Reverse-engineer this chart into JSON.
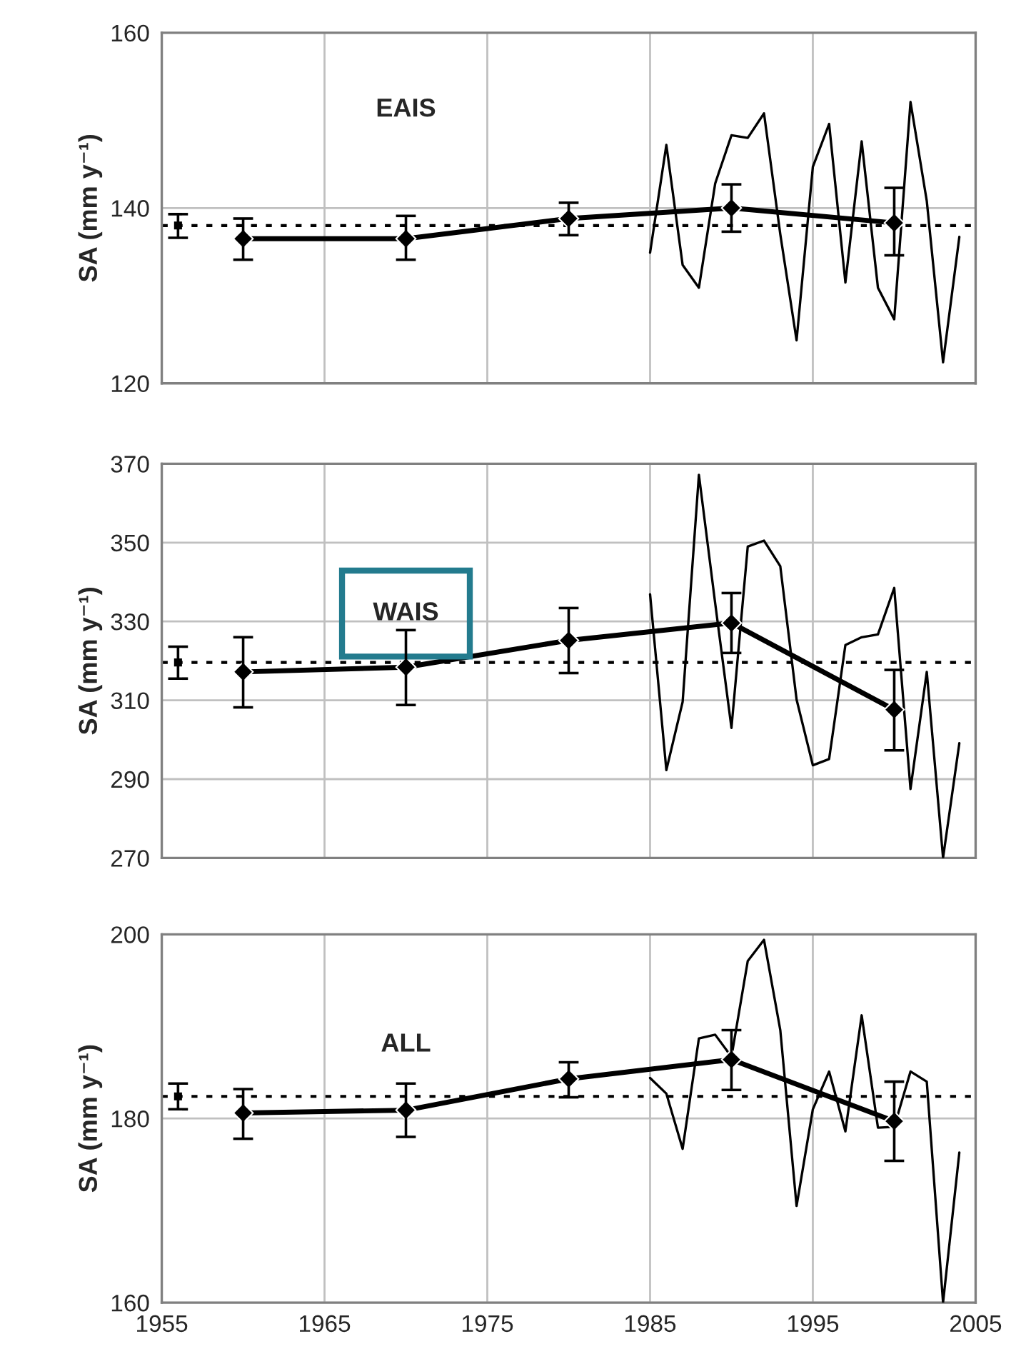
{
  "chart_data": [
    {
      "type": "line",
      "annotations": [
        "EAIS"
      ],
      "ylabel": "SA (mm y⁻¹)",
      "xlim": [
        1955,
        2005
      ],
      "xticks": [
        1955,
        1965,
        1975,
        1985,
        1995,
        2005
      ],
      "ylim": [
        120,
        160
      ],
      "yticks": [
        120,
        140,
        160
      ],
      "grid": true,
      "tick_labels": "y",
      "ref_lines": [
        {
          "axis": "y",
          "value": 138.0,
          "color": "#000000",
          "line_style": "dotted"
        }
      ],
      "series": [
        {
          "color": "#000000",
          "x": [
            1985,
            1986,
            1987,
            1988,
            1989,
            1990,
            1991,
            1992,
            1993,
            1994,
            1995,
            1996,
            1997,
            1998,
            1999,
            2000,
            2001,
            2002,
            2003,
            2004
          ],
          "values": [
            134.9,
            147.2,
            133.5,
            130.9,
            142.8,
            148.3,
            148.0,
            150.8,
            137.0,
            124.9,
            144.7,
            149.6,
            131.5,
            147.6,
            130.9,
            127.3,
            152.1,
            140.8,
            122.4,
            136.7
          ],
          "marker": "none"
        },
        {
          "color": "#000000",
          "x": [
            1960,
            1970,
            1980,
            1990,
            2000
          ],
          "values": [
            136.5,
            136.5,
            138.8,
            140.0,
            138.3
          ],
          "errors": [
            [
              134.1,
              138.8
            ],
            [
              134.1,
              139.1
            ],
            [
              136.9,
              140.6
            ],
            [
              137.3,
              142.7
            ],
            [
              134.6,
              142.3
            ]
          ],
          "marker": "diamond"
        },
        {
          "color": "#000000",
          "x": [
            1956
          ],
          "values": [
            138.0
          ],
          "errors": [
            [
              136.6,
              139.3
            ]
          ],
          "marker": "square"
        }
      ]
    },
    {
      "type": "line",
      "annotations": [
        "WAIS"
      ],
      "ylabel": "SA (mm y⁻¹)",
      "xlim": [
        1955,
        2005
      ],
      "xticks": [
        1955,
        1965,
        1975,
        1985,
        1995,
        2005
      ],
      "ylim": [
        270,
        370
      ],
      "yticks": [
        270,
        290,
        310,
        330,
        350,
        370
      ],
      "grid": true,
      "tick_labels": "y",
      "ref_lines": [
        {
          "axis": "y",
          "value": 319.6,
          "color": "#000000",
          "line_style": "dotted"
        }
      ],
      "series": [
        {
          "color": "#000000",
          "x": [
            1985,
            1986,
            1987,
            1988,
            1989,
            1990,
            1991,
            1992,
            1993,
            1994,
            1995,
            1996,
            1997,
            1998,
            1999,
            2000,
            2001,
            2002,
            2003,
            2004
          ],
          "values": [
            336.9,
            292.3,
            309.6,
            367.2,
            334.6,
            303.0,
            349.0,
            350.5,
            344.0,
            310.2,
            293.5,
            295.1,
            324.0,
            326.0,
            326.7,
            338.5,
            287.5,
            317.2,
            270.0,
            299.1
          ],
          "marker": "none"
        },
        {
          "color": "#000000",
          "x": [
            1960,
            1970,
            1980,
            1990,
            2000
          ],
          "values": [
            317.2,
            318.4,
            325.2,
            329.6,
            307.6
          ],
          "errors": [
            [
              308.2,
              326.0
            ],
            [
              308.8,
              327.8
            ],
            [
              316.9,
              333.4
            ],
            [
              322.0,
              337.2
            ],
            [
              297.3,
              317.7
            ]
          ],
          "marker": "diamond"
        },
        {
          "color": "#000000",
          "x": [
            1956
          ],
          "values": [
            319.6
          ],
          "errors": [
            [
              315.5,
              323.6
            ]
          ],
          "marker": "square"
        }
      ]
    },
    {
      "type": "line",
      "annotations": [
        "ALL"
      ],
      "ylabel": "SA (mm y⁻¹)",
      "xlim": [
        1955,
        2005
      ],
      "xticks": [
        1955,
        1965,
        1975,
        1985,
        1995,
        2005
      ],
      "ylim": [
        160,
        200
      ],
      "yticks": [
        160,
        180,
        200
      ],
      "grid": true,
      "ref_lines": [
        {
          "axis": "y",
          "value": 182.4,
          "color": "#000000",
          "line_style": "dotted"
        }
      ],
      "series": [
        {
          "color": "#000000",
          "x": [
            1985,
            1986,
            1987,
            1988,
            1989,
            1990,
            1991,
            1992,
            1993,
            1994,
            1995,
            1996,
            1997,
            1998,
            1999,
            2000,
            2001,
            2002,
            2003,
            2004
          ],
          "values": [
            184.4,
            182.7,
            176.7,
            188.7,
            189.1,
            186.7,
            197.1,
            199.4,
            189.6,
            170.5,
            181.0,
            185.1,
            178.6,
            191.2,
            179.0,
            179.1,
            185.1,
            184.0,
            160.0,
            176.3
          ],
          "marker": "none"
        },
        {
          "color": "#000000",
          "x": [
            1960,
            1970,
            1980,
            1990,
            2000
          ],
          "values": [
            180.6,
            180.9,
            184.3,
            186.4,
            179.7
          ],
          "errors": [
            [
              177.8,
              183.2
            ],
            [
              178.0,
              183.8
            ],
            [
              182.3,
              186.1
            ],
            [
              183.1,
              189.6
            ],
            [
              175.4,
              184.0
            ]
          ],
          "marker": "diamond"
        },
        {
          "color": "#000000",
          "x": [
            1956
          ],
          "values": [
            182.4
          ],
          "errors": [
            [
              181.0,
              183.8
            ]
          ],
          "marker": "square"
        }
      ]
    }
  ]
}
